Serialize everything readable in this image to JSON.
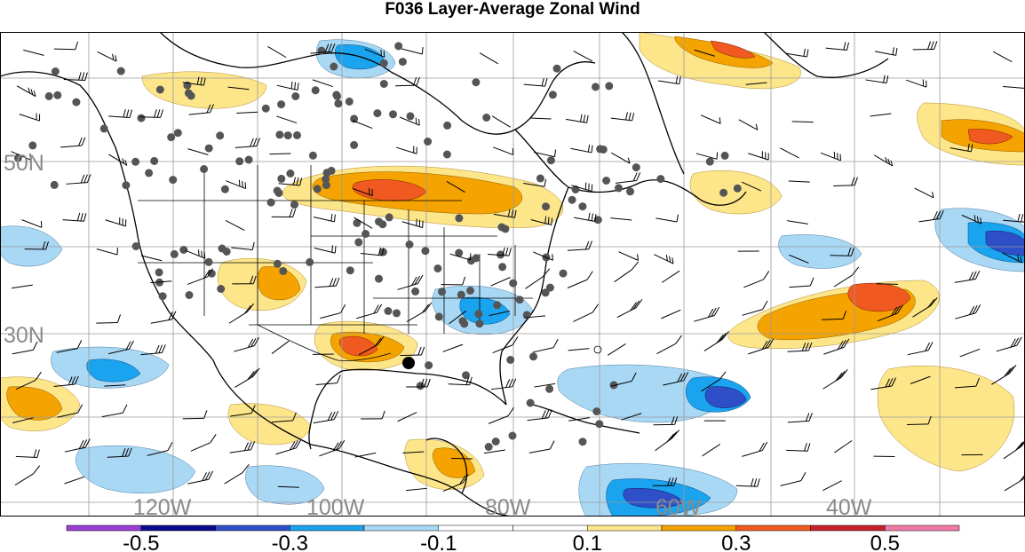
{
  "title": "F036 Layer-Average Zonal Wind",
  "map": {
    "lat_labels": [
      "50N",
      "30N"
    ],
    "lon_labels": [
      "120W",
      "100W",
      "80W",
      "60W",
      "40W"
    ],
    "colors": {
      "background": "#ffffff",
      "gridline": "#9a9a9a",
      "coastline": "#000000",
      "station_dot": "#555555",
      "center_marker": "#000000",
      "wind_barb": "#000000",
      "axis_label": "#8a8a8a"
    }
  },
  "colorbar": {
    "tick_labels": [
      "-0.5",
      "-0.3",
      "-0.1",
      "0.1",
      "0.3",
      "0.5"
    ],
    "levels": [
      -0.6,
      -0.5,
      -0.4,
      -0.3,
      -0.2,
      -0.1,
      0,
      0.1,
      0.2,
      0.3,
      0.4,
      0.5,
      0.6
    ],
    "colors": [
      "#9a3fd4",
      "#0a0a8c",
      "#2e4fc7",
      "#1aa3ee",
      "#a9d8f5",
      "#ffffff",
      "#ffffff",
      "#fde68a",
      "#f5a300",
      "#f05a20",
      "#c8202a",
      "#f27aa8"
    ]
  }
}
